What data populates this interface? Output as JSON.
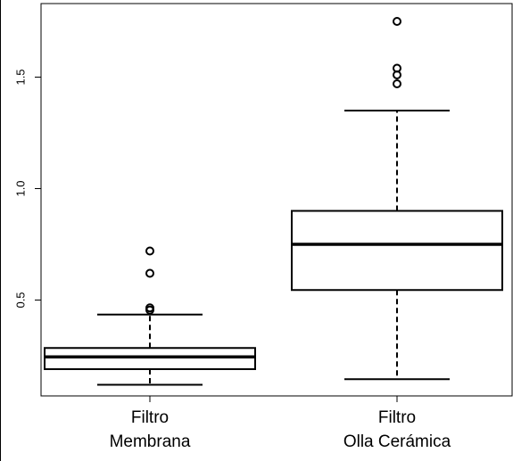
{
  "chart_data": {
    "type": "boxplot",
    "title": "",
    "xlabel": "",
    "ylabel": "",
    "ylim": [
      0.07,
      1.83
    ],
    "yticks": [
      "0.5",
      "1.0",
      "1.5"
    ],
    "grid": false,
    "categories": [
      {
        "line1": "Filtro",
        "line2": "Membrana"
      },
      {
        "line1": "Filtro",
        "line2": "Olla Cerámica"
      }
    ],
    "series": [
      {
        "category_index": 0,
        "whisker_low": 0.12,
        "q1": 0.19,
        "median": 0.245,
        "q3": 0.285,
        "whisker_high": 0.435,
        "outliers": [
          0.455,
          0.465,
          0.62,
          0.72
        ]
      },
      {
        "category_index": 1,
        "whisker_low": 0.145,
        "q1": 0.545,
        "median": 0.75,
        "q3": 0.9,
        "whisker_high": 1.35,
        "outliers": [
          1.47,
          1.51,
          1.54,
          1.75
        ]
      }
    ]
  }
}
